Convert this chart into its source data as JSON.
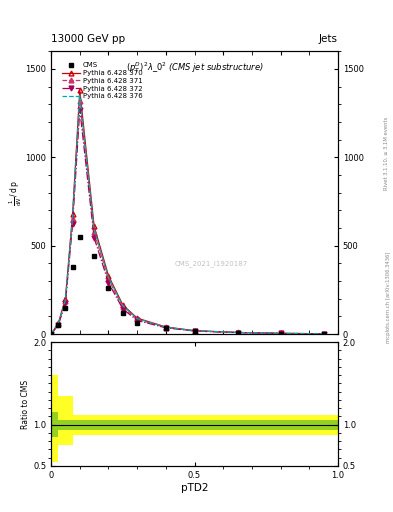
{
  "title_top": "13000 GeV pp",
  "title_right": "Jets",
  "subtitle": "$(p_T^D)^2\\lambda\\_0^2$ (CMS jet substructure)",
  "xlabel": "pTD2",
  "watermark": "CMS_2021_I1920187",
  "rivet_text": "Rivet 3.1.10, ≥ 3.1M events",
  "mcplots_text": "mcplots.cern.ch [arXiv:1306.3436]",
  "x_main": [
    0.0,
    0.025,
    0.05,
    0.075,
    0.1,
    0.15,
    0.2,
    0.25,
    0.3,
    0.4,
    0.5,
    0.65,
    0.8,
    0.95
  ],
  "cms_y": [
    0,
    50,
    150,
    380,
    550,
    440,
    260,
    120,
    65,
    32,
    15,
    7,
    3,
    1
  ],
  "p370_y": [
    0,
    60,
    200,
    680,
    1380,
    610,
    330,
    165,
    90,
    40,
    19,
    9,
    4,
    1.5
  ],
  "p371_y": [
    0,
    55,
    185,
    650,
    1320,
    575,
    310,
    152,
    83,
    37,
    18,
    8.5,
    3.8,
    1.4
  ],
  "p372_y": [
    0,
    50,
    175,
    625,
    1270,
    545,
    290,
    142,
    77,
    35,
    17,
    8,
    3.5,
    1.3
  ],
  "p376_y": [
    0,
    58,
    192,
    665,
    1350,
    590,
    320,
    160,
    87,
    39,
    18.5,
    8.8,
    4,
    1.45
  ],
  "ylim_main": [
    0,
    1600
  ],
  "yticks_main": [
    0,
    500,
    1000,
    1500
  ],
  "ylim_ratio": [
    0.5,
    2.0
  ],
  "yticks_ratio": [
    0.5,
    1.0,
    2.0
  ],
  "xticks": [
    0,
    0.5,
    1.0
  ],
  "background_color": "#ffffff",
  "color_370": "#cc0000",
  "color_371": "#cc3366",
  "color_372": "#aa0055",
  "color_376": "#00aaaa"
}
